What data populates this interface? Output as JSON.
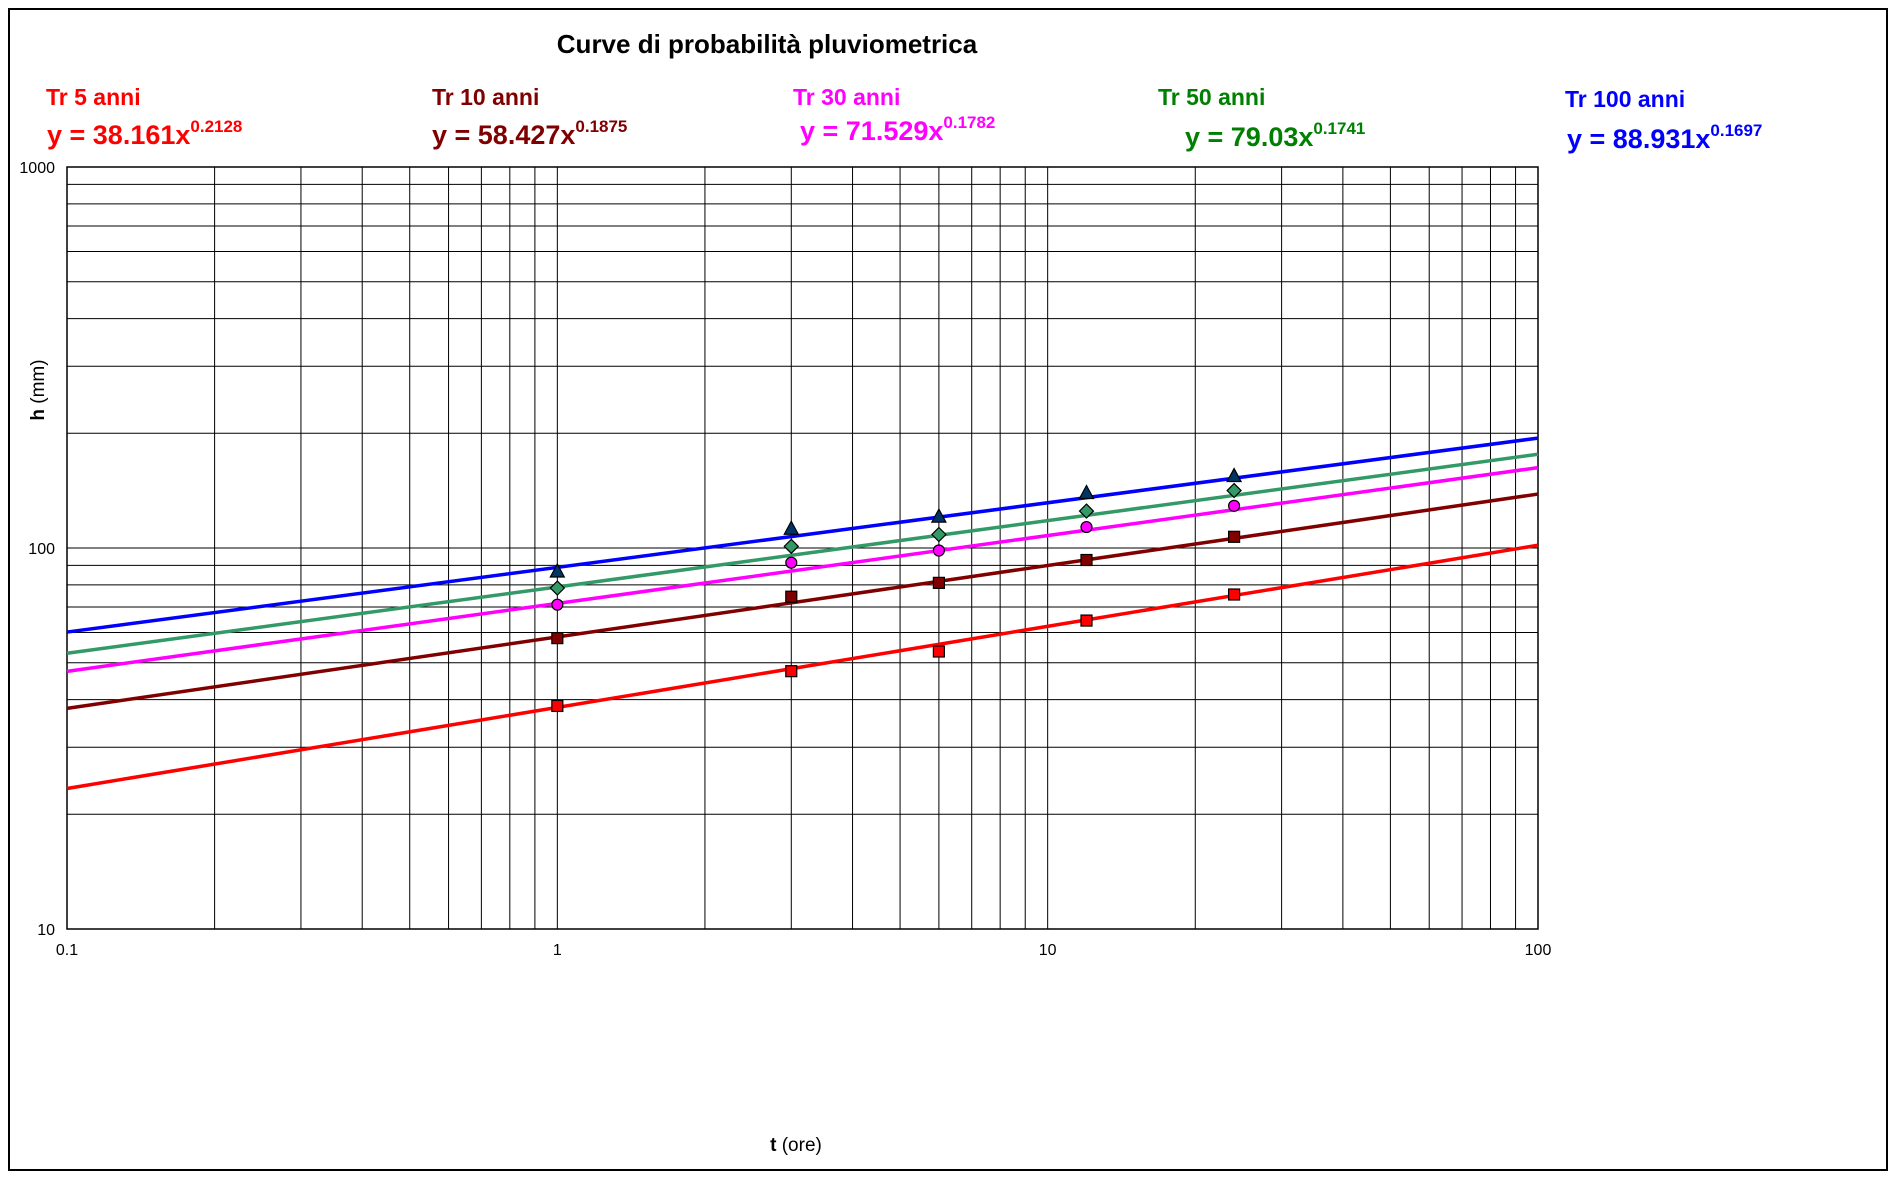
{
  "chart_data": {
    "type": "scatter",
    "title": "Curve di probabilità pluviometrica",
    "xlabel_bold": "t",
    "xlabel_rest": " (ore)",
    "ylabel_bold": "h",
    "ylabel_rest": " (mm)",
    "xscale": "log",
    "yscale": "log",
    "xlim": [
      0.1,
      100
    ],
    "ylim": [
      10,
      1000
    ],
    "x_tick_labels": [
      "0.1",
      "1",
      "10",
      "100"
    ],
    "y_tick_labels": [
      "10",
      "100",
      "1000"
    ],
    "grid": true,
    "x": [
      1,
      3,
      6,
      12,
      24
    ],
    "series": [
      {
        "name": "Tr 5 anni",
        "equation": "y = 38.161x",
        "exponent": "0.2128",
        "coef": 38.161,
        "exp": 0.2128,
        "color": "#ff0000",
        "line_color": "#ff0000",
        "marker": "square",
        "marker_fill": "#ff0000",
        "values": [
          38.5,
          47.5,
          53.5,
          64.5,
          75.5
        ]
      },
      {
        "name": "Tr 10 anni",
        "equation": "y = 58.427x",
        "exponent": "0.1875",
        "coef": 58.427,
        "exp": 0.1875,
        "color": "#800000",
        "line_color": "#800000",
        "marker": "square",
        "marker_fill": "#800000",
        "values": [
          58,
          74.5,
          81,
          93,
          107
        ]
      },
      {
        "name": "Tr 30 anni",
        "equation": "y = 71.529x",
        "exponent": "0.1782",
        "coef": 71.529,
        "exp": 0.1782,
        "color": "#ff00ff",
        "line_color": "#ff00ff",
        "marker": "circle",
        "marker_fill": "#ff00ff",
        "values": [
          71,
          91.5,
          98.5,
          113.5,
          129
        ]
      },
      {
        "name": "Tr 50 anni",
        "equation": "y = 79.03x",
        "exponent": "0.1741",
        "coef": 79.03,
        "exp": 0.1741,
        "color": "#008000",
        "line_color": "#339966",
        "marker": "diamond",
        "marker_fill": "#339966",
        "values": [
          78.5,
          101,
          108.5,
          125,
          141.5
        ]
      },
      {
        "name": "Tr 100 anni",
        "equation": "y = 88.931x",
        "exponent": "0.1697",
        "coef": 88.931,
        "exp": 0.1697,
        "color": "#0000ff",
        "line_color": "#0000ff",
        "marker": "triangle",
        "marker_fill": "#003366",
        "values": [
          86.5,
          112,
          120.5,
          139,
          154
        ]
      }
    ]
  }
}
